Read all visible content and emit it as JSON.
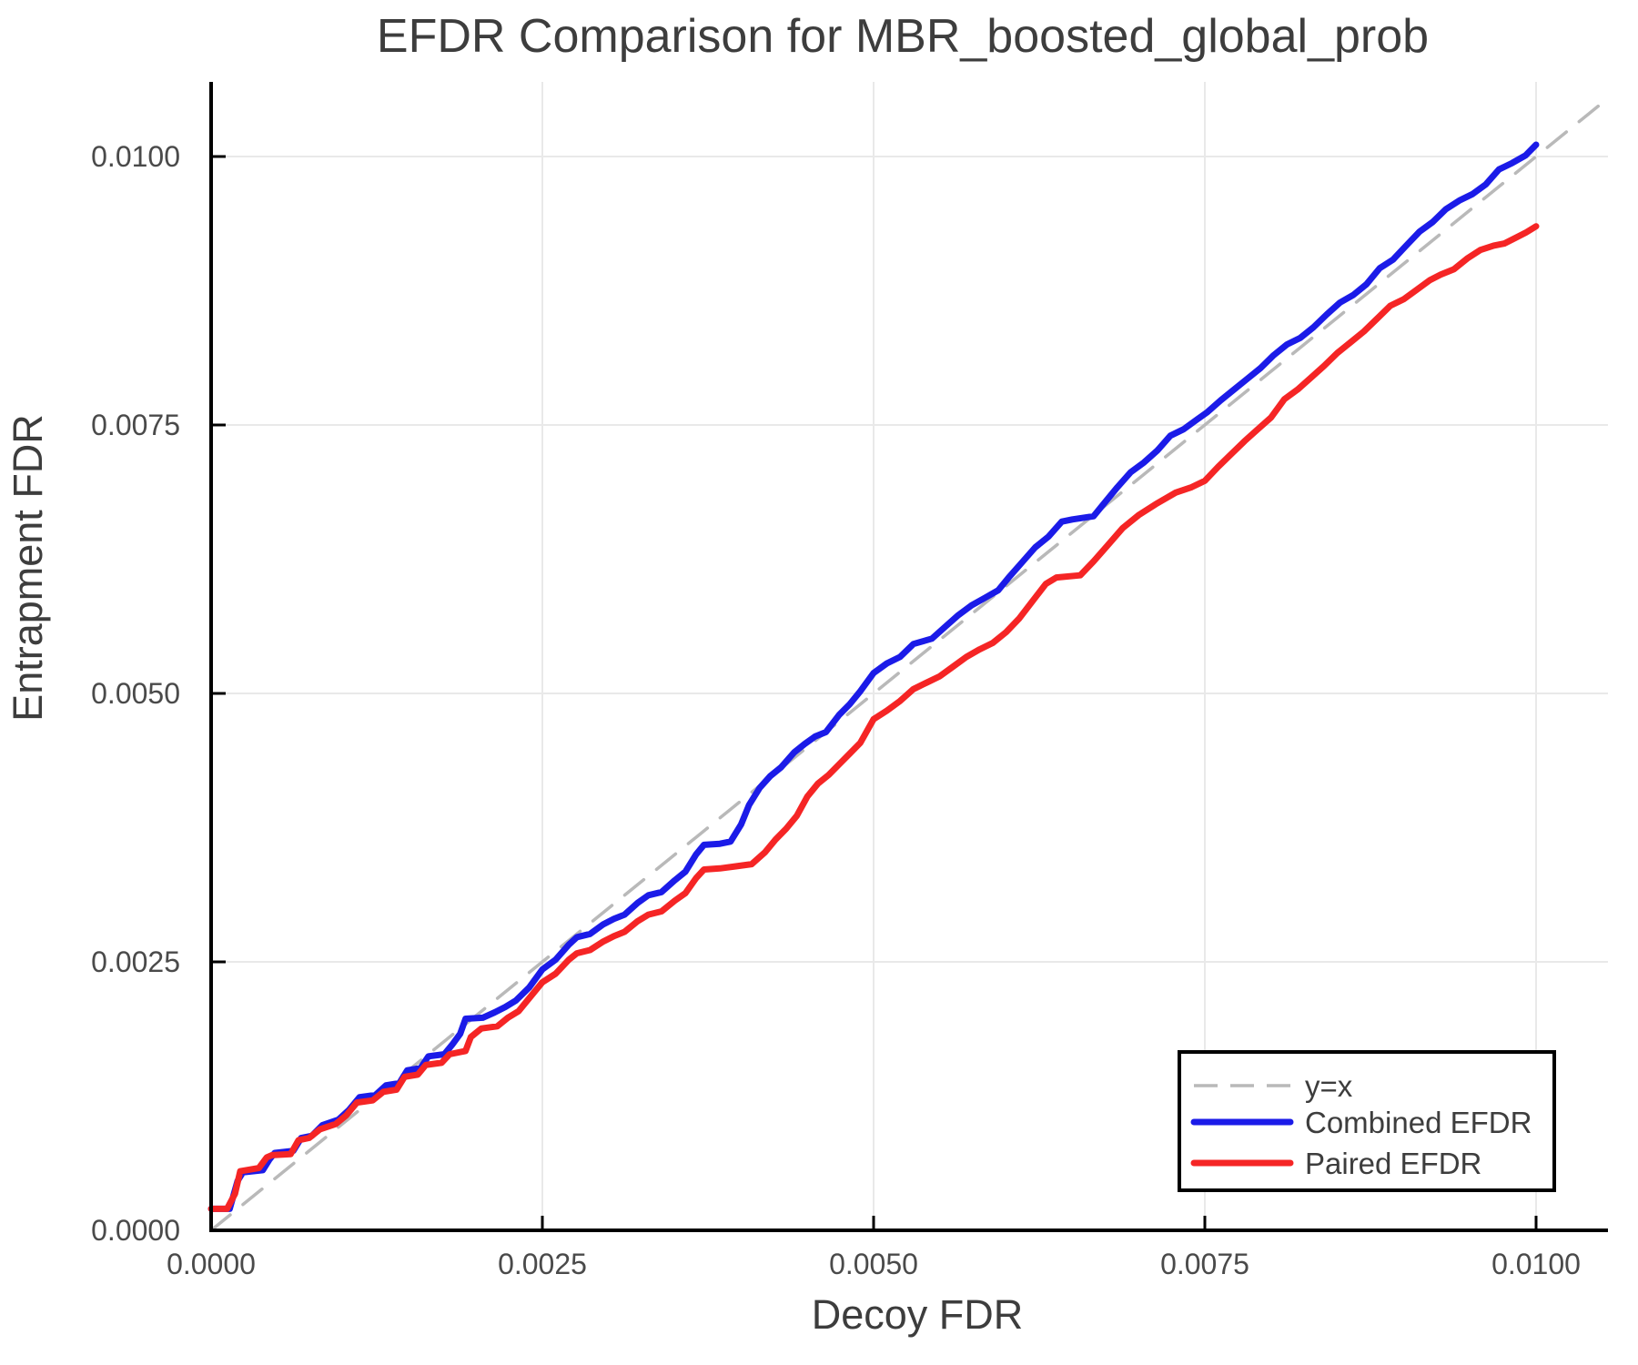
{
  "title": "EFDR Comparison for MBR_boosted_global_prob",
  "axes": {
    "x": {
      "label": "Decoy FDR",
      "tick_labels": [
        "0.0000",
        "0.0025",
        "0.0050",
        "0.0075",
        "0.0100"
      ],
      "tick_values": [
        0,
        0.0025,
        0.005,
        0.0075,
        0.01
      ]
    },
    "y": {
      "label": "Entrapment FDR",
      "tick_labels": [
        "0.0000",
        "0.0025",
        "0.0050",
        "0.0075",
        "0.0100"
      ],
      "tick_values": [
        0,
        0.0025,
        0.005,
        0.0075,
        0.01
      ]
    }
  },
  "legend": {
    "items": [
      {
        "label": "y=x",
        "color": "#b9b9b9",
        "dashed": true
      },
      {
        "label": "Combined EFDR",
        "color": "#1b1be8",
        "dashed": false
      },
      {
        "label": "Paired EFDR",
        "color": "#f52525",
        "dashed": false
      }
    ]
  },
  "colors": {
    "grid": "#e9e9e9",
    "spine": "#000000",
    "diagonal": "#b9b9b9",
    "combined": "#1b1be8",
    "paired": "#f52525",
    "background": "#ffffff"
  },
  "chart_data": {
    "type": "line",
    "title": "EFDR Comparison for MBR_boosted_global_prob",
    "xlabel": "Decoy FDR",
    "ylabel": "Entrapment FDR",
    "xlim": [
      0,
      0.01054
    ],
    "ylim": [
      0,
      0.01069
    ],
    "grid": true,
    "legend_position": "lower right",
    "value_unit": 0.0001,
    "note": "point coordinates are in units of 1e-4 FDR (multiply by value_unit for absolute values)",
    "series": [
      {
        "name": "y=x",
        "style": "dashed",
        "color": "#b9b9b9",
        "points": [
          [
            0,
            0
          ],
          [
            105.4,
            105.4
          ]
        ]
      },
      {
        "name": "Combined EFDR",
        "style": "solid",
        "color": "#1b1be8",
        "points": [
          [
            0,
            2
          ],
          [
            1.4,
            2
          ],
          [
            2.0,
            4.6
          ],
          [
            2.4,
            5.4
          ],
          [
            3.9,
            5.6
          ],
          [
            4.4,
            6.6
          ],
          [
            4.8,
            7.2
          ],
          [
            6.2,
            7.4
          ],
          [
            6.8,
            8.6
          ],
          [
            7.6,
            8.8
          ],
          [
            8.4,
            9.8
          ],
          [
            9.6,
            10.3
          ],
          [
            10.4,
            11.2
          ],
          [
            11.2,
            12.4
          ],
          [
            12.4,
            12.6
          ],
          [
            13.2,
            13.5
          ],
          [
            14.2,
            13.7
          ],
          [
            14.8,
            14.9
          ],
          [
            15.8,
            15.1
          ],
          [
            16.4,
            16.2
          ],
          [
            17.6,
            16.4
          ],
          [
            18.2,
            17.3
          ],
          [
            18.8,
            18.3
          ],
          [
            19.2,
            19.7
          ],
          [
            20.5,
            19.8
          ],
          [
            21.4,
            20.3
          ],
          [
            22.2,
            20.8
          ],
          [
            23.0,
            21.4
          ],
          [
            24.0,
            22.6
          ],
          [
            25.0,
            24.3
          ],
          [
            26.0,
            25.2
          ],
          [
            27.0,
            26.6
          ],
          [
            27.6,
            27.3
          ],
          [
            28.6,
            27.6
          ],
          [
            29.6,
            28.5
          ],
          [
            30.4,
            29.0
          ],
          [
            31.2,
            29.4
          ],
          [
            32.2,
            30.5
          ],
          [
            33.0,
            31.2
          ],
          [
            34.0,
            31.5
          ],
          [
            35.0,
            32.6
          ],
          [
            35.8,
            33.4
          ],
          [
            36.6,
            35.0
          ],
          [
            37.2,
            35.9
          ],
          [
            38.4,
            36.0
          ],
          [
            39.2,
            36.2
          ],
          [
            40.0,
            37.8
          ],
          [
            40.6,
            39.6
          ],
          [
            41.4,
            41.2
          ],
          [
            42.2,
            42.3
          ],
          [
            43.0,
            43.1
          ],
          [
            44.0,
            44.5
          ],
          [
            44.8,
            45.3
          ],
          [
            45.6,
            46.0
          ],
          [
            46.4,
            46.4
          ],
          [
            47.4,
            48.0
          ],
          [
            48.2,
            49.0
          ],
          [
            49.0,
            50.2
          ],
          [
            50.0,
            51.9
          ],
          [
            51.0,
            52.8
          ],
          [
            52.0,
            53.4
          ],
          [
            53.0,
            54.6
          ],
          [
            54.4,
            55.1
          ],
          [
            55.4,
            56.2
          ],
          [
            56.4,
            57.3
          ],
          [
            57.4,
            58.2
          ],
          [
            58.4,
            58.9
          ],
          [
            59.4,
            59.6
          ],
          [
            60.2,
            60.8
          ],
          [
            61.2,
            62.2
          ],
          [
            62.2,
            63.6
          ],
          [
            63.2,
            64.6
          ],
          [
            64.2,
            66.0
          ],
          [
            65.0,
            66.2
          ],
          [
            66.6,
            66.5
          ],
          [
            67.4,
            67.7
          ],
          [
            68.4,
            69.2
          ],
          [
            69.4,
            70.6
          ],
          [
            70.4,
            71.5
          ],
          [
            71.4,
            72.6
          ],
          [
            72.4,
            74.0
          ],
          [
            73.4,
            74.6
          ],
          [
            74.4,
            75.5
          ],
          [
            75.2,
            76.2
          ],
          [
            76.2,
            77.3
          ],
          [
            77.2,
            78.3
          ],
          [
            78.2,
            79.3
          ],
          [
            79.2,
            80.3
          ],
          [
            80.2,
            81.5
          ],
          [
            81.2,
            82.5
          ],
          [
            82.2,
            83.1
          ],
          [
            83.2,
            84.1
          ],
          [
            84.2,
            85.3
          ],
          [
            85.2,
            86.4
          ],
          [
            86.2,
            87.1
          ],
          [
            87.2,
            88.1
          ],
          [
            88.2,
            89.6
          ],
          [
            89.2,
            90.4
          ],
          [
            90.2,
            91.7
          ],
          [
            91.2,
            93.0
          ],
          [
            92.2,
            93.9
          ],
          [
            93.2,
            95.1
          ],
          [
            94.2,
            95.9
          ],
          [
            95.2,
            96.5
          ],
          [
            96.2,
            97.4
          ],
          [
            97.2,
            98.8
          ],
          [
            98.2,
            99.4
          ],
          [
            99.2,
            100.1
          ],
          [
            100,
            101.1
          ]
        ]
      },
      {
        "name": "Paired EFDR",
        "style": "solid",
        "color": "#f52525",
        "points": [
          [
            0,
            2
          ],
          [
            1.2,
            2
          ],
          [
            1.8,
            3.4
          ],
          [
            2.2,
            5.5
          ],
          [
            3.6,
            5.8
          ],
          [
            4.2,
            6.8
          ],
          [
            4.6,
            7.0
          ],
          [
            6.0,
            7.1
          ],
          [
            6.6,
            8.4
          ],
          [
            7.4,
            8.6
          ],
          [
            8.2,
            9.4
          ],
          [
            9.4,
            9.9
          ],
          [
            10.2,
            10.7
          ],
          [
            11.0,
            11.9
          ],
          [
            12.2,
            12.1
          ],
          [
            13.0,
            12.9
          ],
          [
            14.0,
            13.1
          ],
          [
            14.6,
            14.3
          ],
          [
            15.6,
            14.5
          ],
          [
            16.2,
            15.4
          ],
          [
            17.4,
            15.6
          ],
          [
            18.0,
            16.4
          ],
          [
            19.2,
            16.7
          ],
          [
            19.6,
            18.0
          ],
          [
            20.4,
            18.8
          ],
          [
            21.6,
            19.0
          ],
          [
            22.4,
            19.8
          ],
          [
            23.2,
            20.4
          ],
          [
            24.0,
            21.6
          ],
          [
            25.0,
            23.1
          ],
          [
            26.0,
            23.9
          ],
          [
            27.0,
            25.2
          ],
          [
            27.6,
            25.8
          ],
          [
            28.6,
            26.1
          ],
          [
            29.6,
            26.9
          ],
          [
            30.4,
            27.4
          ],
          [
            31.2,
            27.8
          ],
          [
            32.2,
            28.8
          ],
          [
            33.0,
            29.4
          ],
          [
            34.0,
            29.7
          ],
          [
            35.0,
            30.7
          ],
          [
            35.8,
            31.4
          ],
          [
            36.6,
            32.8
          ],
          [
            37.2,
            33.6
          ],
          [
            38.4,
            33.7
          ],
          [
            39.6,
            33.9
          ],
          [
            40.8,
            34.1
          ],
          [
            41.8,
            35.2
          ],
          [
            42.6,
            36.4
          ],
          [
            43.4,
            37.4
          ],
          [
            44.2,
            38.6
          ],
          [
            45.0,
            40.4
          ],
          [
            45.8,
            41.6
          ],
          [
            46.6,
            42.4
          ],
          [
            47.4,
            43.4
          ],
          [
            48.2,
            44.4
          ],
          [
            49.0,
            45.4
          ],
          [
            50.0,
            47.6
          ],
          [
            51.0,
            48.4
          ],
          [
            52.0,
            49.3
          ],
          [
            53.0,
            50.4
          ],
          [
            54.0,
            51.0
          ],
          [
            55.0,
            51.6
          ],
          [
            56.0,
            52.5
          ],
          [
            57.0,
            53.4
          ],
          [
            58.0,
            54.1
          ],
          [
            59.0,
            54.7
          ],
          [
            60.0,
            55.7
          ],
          [
            61.0,
            57.0
          ],
          [
            62.0,
            58.6
          ],
          [
            63.0,
            60.2
          ],
          [
            63.8,
            60.8
          ],
          [
            65.6,
            61.0
          ],
          [
            66.6,
            62.3
          ],
          [
            67.6,
            63.7
          ],
          [
            68.8,
            65.4
          ],
          [
            70.0,
            66.6
          ],
          [
            71.4,
            67.7
          ],
          [
            72.8,
            68.7
          ],
          [
            74.0,
            69.2
          ],
          [
            75.0,
            69.8
          ],
          [
            76.0,
            71.1
          ],
          [
            77.0,
            72.3
          ],
          [
            78.0,
            73.5
          ],
          [
            79.0,
            74.6
          ],
          [
            80.0,
            75.7
          ],
          [
            81.0,
            77.4
          ],
          [
            82.0,
            78.3
          ],
          [
            83.0,
            79.4
          ],
          [
            84.0,
            80.5
          ],
          [
            85.0,
            81.7
          ],
          [
            86.0,
            82.7
          ],
          [
            87.0,
            83.7
          ],
          [
            88.0,
            84.9
          ],
          [
            89.0,
            86.1
          ],
          [
            90.0,
            86.7
          ],
          [
            91.0,
            87.6
          ],
          [
            92.0,
            88.5
          ],
          [
            92.8,
            89.0
          ],
          [
            93.8,
            89.5
          ],
          [
            94.8,
            90.5
          ],
          [
            95.8,
            91.3
          ],
          [
            96.8,
            91.7
          ],
          [
            97.6,
            91.9
          ],
          [
            98.4,
            92.4
          ],
          [
            99.2,
            92.9
          ],
          [
            100,
            93.5
          ]
        ]
      }
    ]
  }
}
